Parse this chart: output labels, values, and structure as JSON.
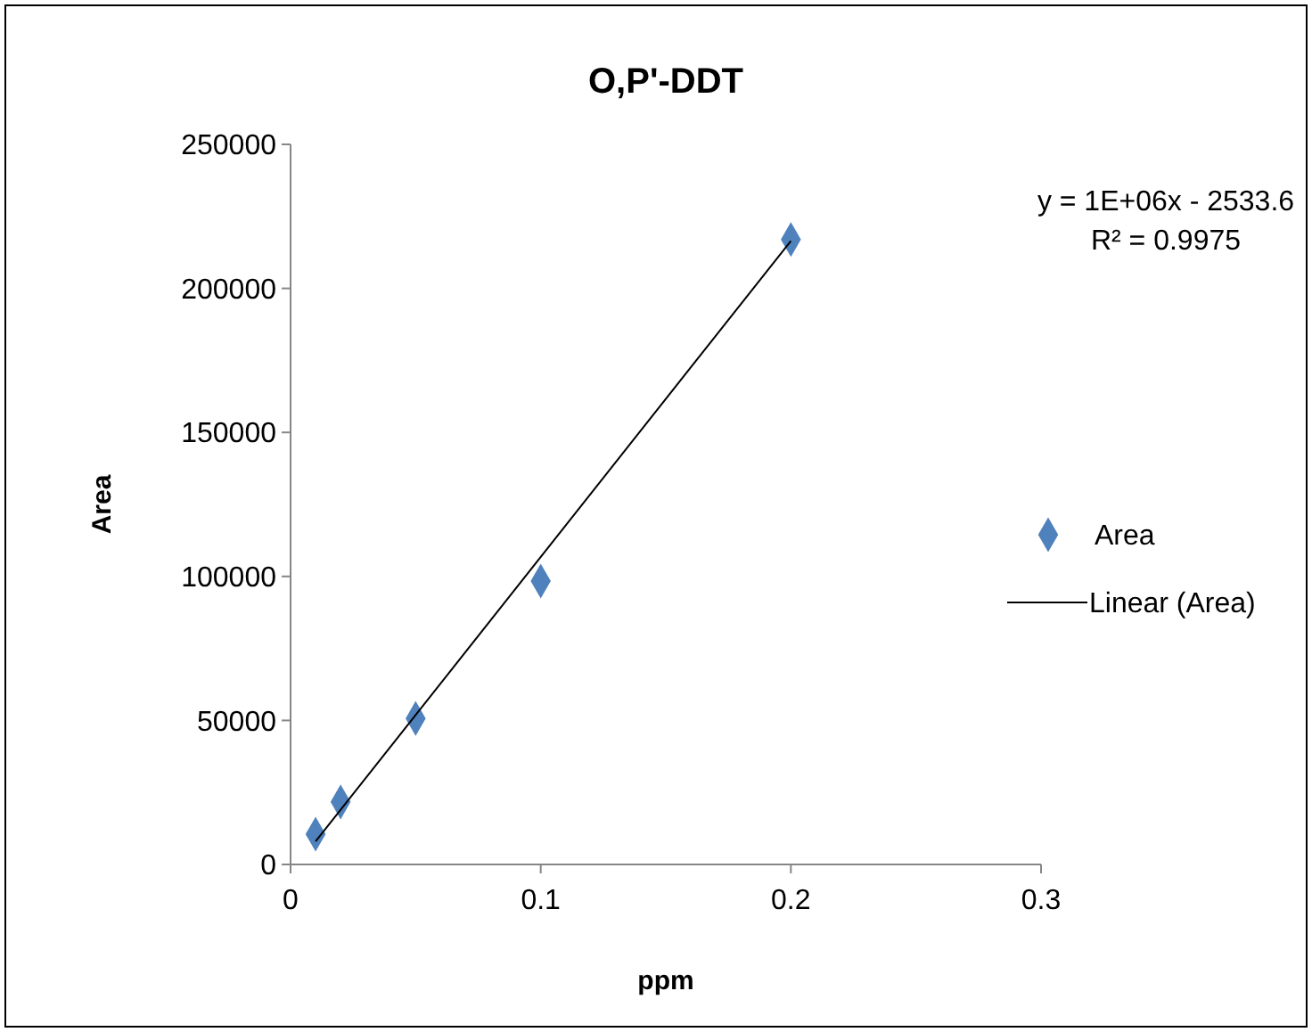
{
  "chart_data": {
    "type": "scatter",
    "title": "O,P'-DDT",
    "xlabel": "ppm",
    "ylabel": "Area",
    "xlim": [
      0,
      0.3
    ],
    "xticks": [
      0,
      0.1,
      0.2,
      0.3
    ],
    "ylim": [
      0,
      250000
    ],
    "yticks": [
      0,
      50000,
      100000,
      150000,
      200000,
      250000
    ],
    "grid": false,
    "legend": "right",
    "annotations": [
      "y = 1E+06x - 2533.6",
      "R² = 0.9975"
    ],
    "series": [
      {
        "name": "Area",
        "marker": "diamond",
        "color": "#4f81bd",
        "x": [
          0.01,
          0.02,
          0.05,
          0.1,
          0.2
        ],
        "values": [
          10500,
          21700,
          50700,
          98400,
          217000
        ]
      },
      {
        "name": "Linear (Area)",
        "type": "line",
        "color": "#000000",
        "line_style": "solid",
        "x": [
          0.01,
          0.2
        ],
        "values": [
          8000,
          216500
        ]
      }
    ]
  }
}
